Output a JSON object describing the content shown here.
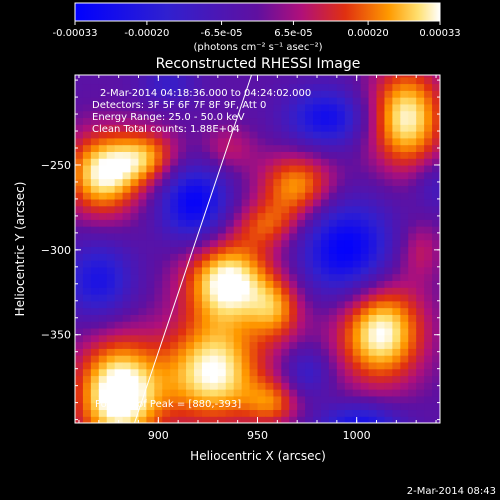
{
  "colorbar": {
    "ticks": [
      "-0.00033",
      "-0.00020",
      "-6.5e-05",
      "6.5e-05",
      "0.00020",
      "0.00033"
    ],
    "unit_label": "(photons cm⁻² s⁻¹ asec⁻²)",
    "range": [
      -0.00033,
      0.00033
    ]
  },
  "chart_data": {
    "type": "heatmap",
    "title": "Reconstructed RHESSI Image",
    "xlabel": "Heliocentric X (arcsec)",
    "ylabel": "Heliocentric Y (arcsec)",
    "xlim": [
      858,
      1042
    ],
    "ylim": [
      -402,
      -197
    ],
    "x_ticks": [
      900,
      950,
      1000
    ],
    "y_ticks": [
      -250,
      -300,
      -350
    ],
    "annotations": [
      "2-Mar-2014 04:18:36.000 to 04:24:02.000",
      "Detectors: 3F 5F 6F 7F 8F 9F, Att 0",
      "Energy Range: 25.0 - 50.0 keV",
      "Clean Total counts: 1.88E+04"
    ],
    "peak_label": "Position of Peak = [880,-393]",
    "peak": [
      880,
      -393
    ],
    "limb_line": [
      [
        888,
        -402
      ],
      [
        947,
        -197
      ]
    ],
    "colors": {
      "neg_max": "#0000ff",
      "neutral": "#6010a0",
      "pos_mid": "#e03010",
      "pos_max": "#ffffff"
    },
    "blobs": [
      {
        "x": 872,
        "y": -255,
        "sx": 14,
        "sy": 18,
        "v": 0.00034
      },
      {
        "x": 895,
        "y": -245,
        "sx": 12,
        "sy": 12,
        "v": 0.00022
      },
      {
        "x": 935,
        "y": -240,
        "sx": 10,
        "sy": 10,
        "v": 0.00012
      },
      {
        "x": 970,
        "y": -262,
        "sx": 14,
        "sy": 14,
        "v": 0.00026
      },
      {
        "x": 955,
        "y": -285,
        "sx": 12,
        "sy": 10,
        "v": 0.00016
      },
      {
        "x": 935,
        "y": -318,
        "sx": 16,
        "sy": 18,
        "v": 0.00036
      },
      {
        "x": 960,
        "y": -335,
        "sx": 10,
        "sy": 14,
        "v": 0.0002
      },
      {
        "x": 1025,
        "y": -222,
        "sx": 14,
        "sy": 22,
        "v": 0.00034
      },
      {
        "x": 1032,
        "y": -300,
        "sx": 8,
        "sy": 12,
        "v": 0.00012
      },
      {
        "x": 1012,
        "y": -348,
        "sx": 16,
        "sy": 22,
        "v": 0.00036
      },
      {
        "x": 880,
        "y": -385,
        "sx": 16,
        "sy": 24,
        "v": 0.0004
      },
      {
        "x": 928,
        "y": -372,
        "sx": 18,
        "sy": 22,
        "v": 0.00035
      },
      {
        "x": 958,
        "y": -390,
        "sx": 10,
        "sy": 10,
        "v": 0.00018
      },
      {
        "x": 918,
        "y": -272,
        "sx": 12,
        "sy": 16,
        "v": -0.0003
      },
      {
        "x": 985,
        "y": -222,
        "sx": 14,
        "sy": 12,
        "v": -0.00025
      },
      {
        "x": 995,
        "y": -300,
        "sx": 16,
        "sy": 20,
        "v": -0.00032
      },
      {
        "x": 870,
        "y": -318,
        "sx": 12,
        "sy": 16,
        "v": -0.00022
      },
      {
        "x": 975,
        "y": -372,
        "sx": 8,
        "sy": 10,
        "v": -0.00014
      },
      {
        "x": 1002,
        "y": -402,
        "sx": 14,
        "sy": 8,
        "v": -0.00024
      },
      {
        "x": 1040,
        "y": -262,
        "sx": 8,
        "sy": 10,
        "v": -0.0001
      },
      {
        "x": 905,
        "y": -202,
        "sx": 10,
        "sy": 8,
        "v": -0.00012
      }
    ]
  },
  "footer": {
    "timestamp": "2-Mar-2014 08:43"
  }
}
